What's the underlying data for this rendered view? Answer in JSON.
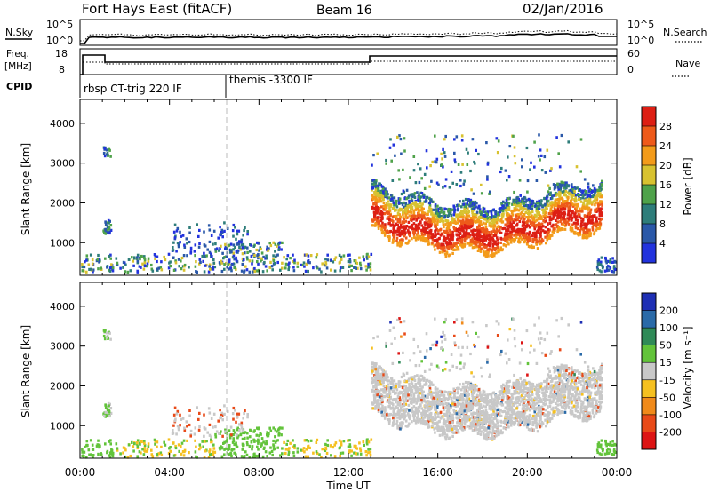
{
  "header": {
    "station": "Fort Hays East (fitACF)",
    "beam": "Beam 16",
    "date": "02/Jan/2016"
  },
  "labels": {
    "nsky": "N.Sky",
    "nsearch": "N.Search",
    "freq_top": "Freq.",
    "freq_unit": "[MHz]",
    "nave": "Nave",
    "cpid": "CPID",
    "pow_exp_hi": "10^5",
    "pow_exp_lo": "10^0",
    "freq_tick_hi": "18",
    "freq_tick_lo": "8",
    "nave_tick_hi": "60",
    "nave_tick_lo": "0"
  },
  "cpid": [
    {
      "label": "rbsp CT-trig 220 IF",
      "start_hour": 0
    },
    {
      "label": "themis -3300 IF",
      "start_hour": 6.55
    }
  ],
  "chart_data": [
    {
      "type": "heatmap",
      "title": "",
      "ylabel": "Slant Range [km]",
      "xlabel": "",
      "xlim": [
        0,
        24
      ],
      "ylim": [
        180,
        4600
      ],
      "yticks": [
        1000,
        2000,
        3000,
        4000
      ],
      "colorbar_label": "Power [dB]",
      "colorbar_ticks": [
        "4",
        "8",
        "12",
        "16",
        "20",
        "24",
        "28"
      ],
      "colors": [
        "#2233dd",
        "#2a58a8",
        "#2e7d7a",
        "#4fa24a",
        "#d8c230",
        "#f39b1a",
        "#ee5a1a",
        "#dd1f14"
      ]
    },
    {
      "type": "heatmap",
      "title": "",
      "ylabel": "Slant Range [km]",
      "xlabel": "Time UT",
      "xlim": [
        0,
        24
      ],
      "ylim": [
        180,
        4600
      ],
      "yticks": [
        1000,
        2000,
        3000,
        4000
      ],
      "xticks": [
        "00:00",
        "04:00",
        "08:00",
        "12:00",
        "16:00",
        "20:00",
        "00:00"
      ],
      "colorbar_label": "Velocity [m s^-1]",
      "colorbar_ticks": [
        "200",
        "100",
        "50",
        "15",
        "-15",
        "-50",
        "-100",
        "-200"
      ],
      "colors": [
        "#1e2fb4",
        "#2a6aa8",
        "#2f8a57",
        "#62c33a",
        "#c8c8c8",
        "#f5c020",
        "#f08a1a",
        "#e84a18",
        "#dd1414"
      ]
    }
  ]
}
